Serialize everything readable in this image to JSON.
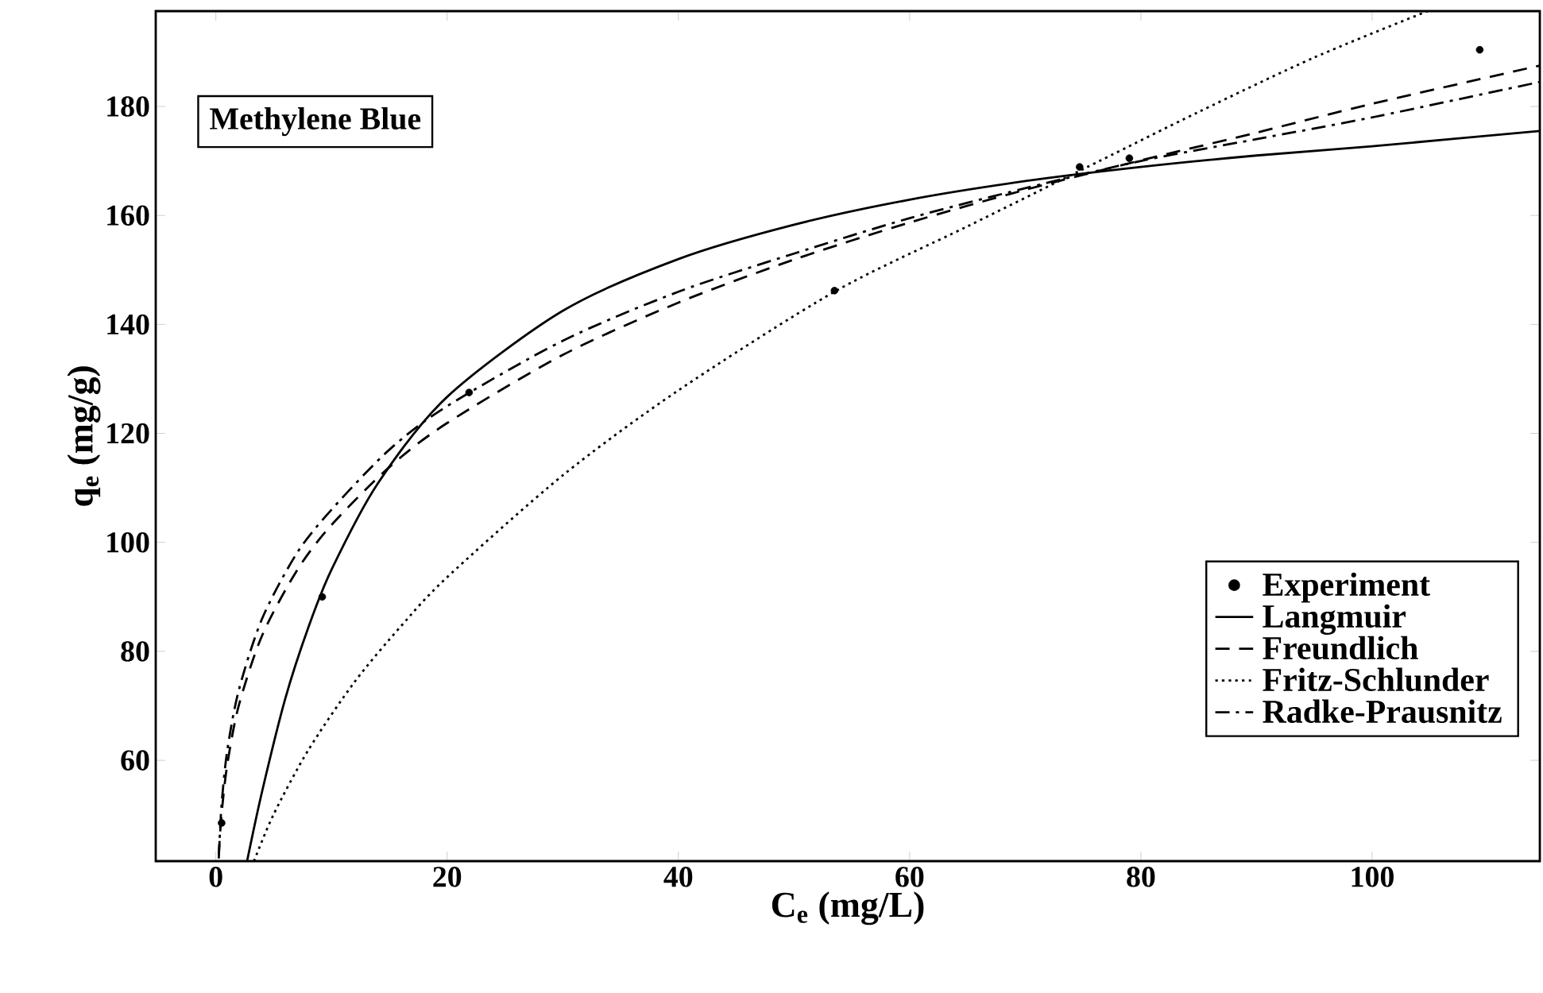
{
  "chart_data": {
    "type": "line",
    "xlabel": "C$_{e}$ (mg/L)",
    "ylabel": "q$_{e}$ (mg/g)",
    "annotations": [
      "Methylene Blue"
    ],
    "xlim": [
      -5.2,
      114.5
    ],
    "ylim": [
      41.5,
      197.5
    ],
    "xticks": [
      0,
      20,
      40,
      60,
      80,
      100
    ],
    "yticks": [
      60,
      80,
      100,
      120,
      140,
      160,
      180
    ],
    "grid": false,
    "legend": "bottom right",
    "series": [
      {
        "name": "Experiment",
        "type": "scatter",
        "marker": "circle",
        "color": "#000000",
        "x": [
          0.5,
          9.2,
          21.9,
          53.5,
          74.7,
          79,
          109.3
        ],
        "values": [
          48.5,
          90,
          127.5,
          146.2,
          168.9,
          170.5,
          190.4
        ]
      },
      {
        "name": "Langmuir",
        "type": "line",
        "line_style": "solid",
        "color": "#000000",
        "x": [
          2.7,
          4,
          6,
          8,
          10,
          14,
          20,
          30,
          40,
          50,
          60,
          70,
          80,
          90,
          100,
          114.5
        ],
        "values": [
          41.5,
          54.3,
          71.3,
          84.4,
          95,
          110.8,
          126.7,
          142.5,
          152,
          158.3,
          162.9,
          166.3,
          168.9,
          171,
          172.7,
          175.5
        ]
      },
      {
        "name": "Freundlich",
        "type": "line",
        "line_style": "dashed",
        "color": "#000000",
        "x": [
          0.25,
          0.5,
          1,
          2,
          4,
          7,
          10,
          15,
          20,
          30,
          40,
          50,
          60,
          70,
          80,
          90,
          100,
          114.5
        ],
        "values": [
          42.6,
          50.3,
          59.4,
          70.2,
          82.9,
          94.8,
          103.2,
          113.8,
          121.9,
          134.4,
          144,
          151.9,
          158.7,
          164.7,
          170.1,
          175.2,
          180.5,
          187.5
        ]
      },
      {
        "name": "Fritz-Schlunder",
        "type": "line",
        "line_style": "dotted",
        "color": "#000000",
        "x": [
          3.3,
          5,
          8,
          12,
          16,
          20,
          30,
          40,
          53.5,
          65,
          75,
          85,
          95,
          104.8
        ],
        "values": [
          41.5,
          50.1,
          61.9,
          74.4,
          84.6,
          93.6,
          112.3,
          127.9,
          146,
          158,
          168.5,
          179,
          189,
          197.5
        ]
      },
      {
        "name": "Radke-Prausnitz",
        "type": "line",
        "line_style": "dashdot",
        "color": "#000000",
        "x": [
          0.25,
          0.5,
          1,
          2,
          4,
          7,
          10,
          15,
          20,
          30,
          40,
          50,
          60,
          70,
          80,
          90,
          100,
          114.5
        ],
        "values": [
          42,
          52,
          62,
          73,
          86,
          98,
          106,
          117,
          125,
          137,
          146,
          153,
          159.5,
          165,
          170,
          174,
          178,
          184.5
        ]
      }
    ]
  }
}
